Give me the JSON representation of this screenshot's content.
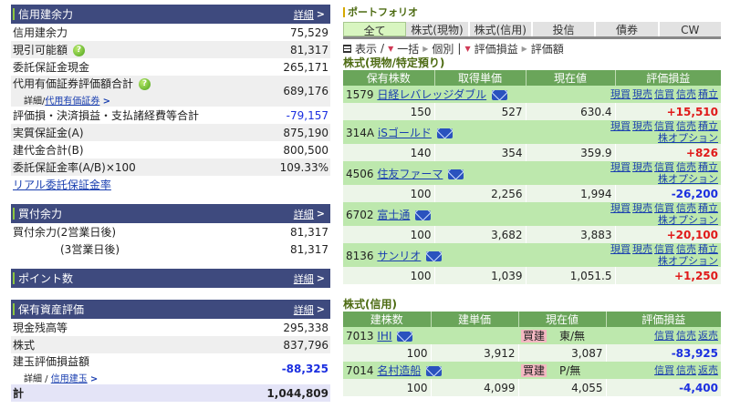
{
  "left": {
    "credit": {
      "title": "信用建余力",
      "detail": "詳細",
      "rows": [
        {
          "label": "信用建余力",
          "value": "75,529"
        },
        {
          "label": "現引可能額",
          "value": "81,317",
          "help": true
        },
        {
          "label": "委託保証金現金",
          "value": "265,171"
        },
        {
          "label": "代用有価証券評価額合計",
          "sub_prefix": "詳細/",
          "sub_link": "代用有価証券",
          "value": "689,176",
          "help": true
        },
        {
          "label": "評価損・決済損益・支払諸経費等合計",
          "value": "-79,157"
        },
        {
          "label": "実質保証金(A)",
          "value": "875,190"
        },
        {
          "label": "建代金合計(B)",
          "value": "800,500"
        },
        {
          "label": "委託保証金率(A/B)×100",
          "value": "109.33%"
        }
      ],
      "link": "リアル委託保証金率"
    },
    "buying": {
      "title": "買付余力",
      "detail": "詳細",
      "rows": [
        {
          "label": "買付余力(2営業日後)",
          "value": "81,317"
        },
        {
          "label": "(3営業日後)",
          "value": "81,317"
        }
      ]
    },
    "points": {
      "title": "ポイント数",
      "detail": "詳細"
    },
    "assets": {
      "title": "保有資産評価",
      "detail": "詳細",
      "rows": [
        {
          "label": "現金残高等",
          "value": "295,338"
        },
        {
          "label": "株式",
          "value": "837,796"
        },
        {
          "label": "建玉評価損益額",
          "sub_prefix": "詳細 / ",
          "sub_link": "信用建玉",
          "value": "-88,325"
        }
      ],
      "total": {
        "label": "計",
        "value": "1,044,809"
      }
    }
  },
  "right": {
    "title": "ポートフォリオ",
    "tabs": [
      "全て",
      "株式(現物)",
      "株式(信用)",
      "投信",
      "債券",
      "CW"
    ],
    "tools": {
      "display": "表示",
      "bulk": "一括",
      "individual": "個別",
      "pl": "評価損益",
      "value": "評価額"
    },
    "spot": {
      "title": "株式(現物/特定預り)",
      "headers": [
        "保有株数",
        "取得単価",
        "現在値",
        "評価損益"
      ],
      "holdings": [
        {
          "code": "1579",
          "name": "日経レバレッジダブル",
          "actions": [
            "現買",
            "現売",
            "信買",
            "信売",
            "積立"
          ],
          "option": "",
          "qty": "150",
          "cost": "527",
          "price": "630.4",
          "pl": "+15,510"
        },
        {
          "code": "314A",
          "name": "iSゴールド",
          "actions": [
            "現買",
            "現売",
            "信買",
            "信売",
            "積立"
          ],
          "option": "株オプション",
          "qty": "140",
          "cost": "354",
          "price": "359.9",
          "pl": "+826"
        },
        {
          "code": "4506",
          "name": "住友ファーマ",
          "actions": [
            "現買",
            "現売",
            "信買",
            "信売",
            "積立"
          ],
          "option": "株オプション",
          "qty": "100",
          "cost": "2,256",
          "price": "1,994",
          "pl": "-26,200"
        },
        {
          "code": "6702",
          "name": "富士通",
          "actions": [
            "現買",
            "現売",
            "信買",
            "信売",
            "積立"
          ],
          "option": "株オプション",
          "qty": "100",
          "cost": "3,682",
          "price": "3,883",
          "pl": "+20,100"
        },
        {
          "code": "8136",
          "name": "サンリオ",
          "actions": [
            "現買",
            "現売",
            "信買",
            "信売",
            "積立"
          ],
          "option": "株オプション",
          "qty": "100",
          "cost": "1,039",
          "price": "1,051.5",
          "pl": "+1,250"
        }
      ]
    },
    "margin": {
      "title": "株式(信用)",
      "headers": [
        "建株数",
        "建単価",
        "現在値",
        "評価損益"
      ],
      "holdings": [
        {
          "code": "7013",
          "name": "IHI",
          "side": "買建",
          "market": "東/無",
          "actions": [
            "信買",
            "信売",
            "返売"
          ],
          "qty": "100",
          "cost": "3,912",
          "price": "3,087",
          "pl": "-83,925"
        },
        {
          "code": "7014",
          "name": "名村造船",
          "side": "買建",
          "market": "P/無",
          "actions": [
            "信買",
            "信売",
            "返売"
          ],
          "qty": "100",
          "cost": "4,099",
          "price": "4,055",
          "pl": "-4,400"
        }
      ]
    }
  }
}
